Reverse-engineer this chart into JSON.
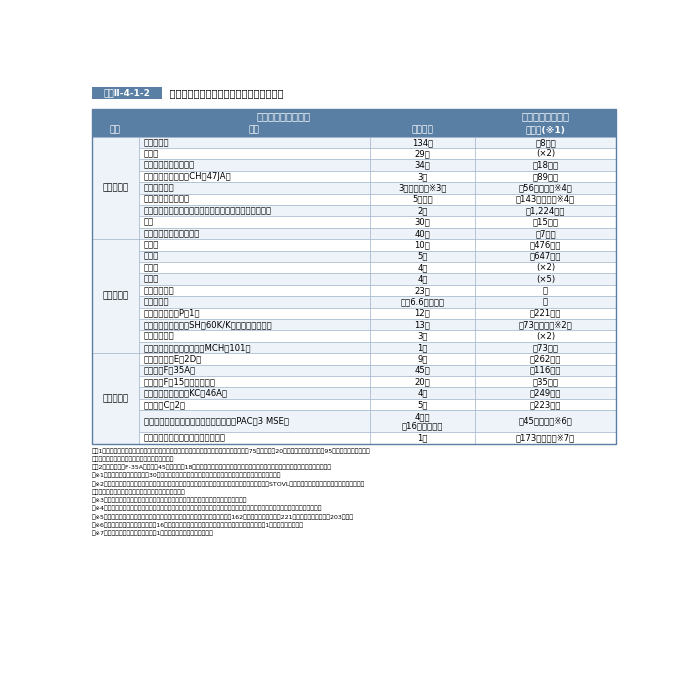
{
  "title_label": "図表Ⅱ-4-1-2",
  "title_rest": " 新中期防の「別表」及び別表装備品の単価",
  "header_main": "新中期防の「別表」",
  "header_unit": "別表装備品の単価",
  "col_headers": [
    "区分",
    "種類",
    "整備規模",
    "単　価(×1)"
  ],
  "col_headers_display": [
    "区分",
    "種類",
    "整備規模",
    "単　価(※1)"
  ],
  "rows": [
    [
      "陸上自衛隊",
      "機動戦闘車",
      "134両",
      "約8億円"
    ],
    [
      "",
      "装甲車",
      "29両",
      "(×2)"
    ],
    [
      "",
      "新多用途ヘリコプター",
      "34機",
      "約18億円"
    ],
    [
      "",
      "輸送ヘリコプター（CH－47JA）",
      "3機",
      "約89億円"
    ],
    [
      "",
      "地対艦誘導弾",
      "3個中隊　（※3）",
      "約56億円　（※4）"
    ],
    [
      "",
      "中距離地対空誘導弾",
      "5個中隊",
      "約143億円　（※4）"
    ],
    [
      "",
      "陸上配備型イージス・システム（イージス・アショア）",
      "2基",
      "約1,224億円"
    ],
    [
      "",
      "戦車",
      "30両",
      "約15億円"
    ],
    [
      "",
      "火砲（迫撃砲を除く。）",
      "40両",
      "約7億円"
    ],
    [
      "海上自衛隊",
      "護衛艦",
      "10隻",
      "約476億円"
    ],
    [
      "",
      "潜水艦",
      "5隻",
      "約647億円"
    ],
    [
      "",
      "哨戒艦",
      "4隻",
      "(×2)"
    ],
    [
      "",
      "その他",
      "4隻",
      "(×5)"
    ],
    [
      "",
      "自衛艦建造計",
      "23隻",
      "－"
    ],
    [
      "",
      "（トン数）",
      "（約6.6万トン）",
      "－"
    ],
    [
      "",
      "固定翼哨戒機（P－1）",
      "12機",
      "約221億円"
    ],
    [
      "",
      "哨戒ヘリコプター（SH－60K/K（能力向上型））",
      "13機",
      "約73億円　（※2）"
    ],
    [
      "",
      "艦載型無人機",
      "3機",
      "(×2)"
    ],
    [
      "",
      "掃海・輸送ヘリコプター（MCH－101）",
      "1機",
      "約73億円"
    ],
    [
      "航空自衛隊",
      "早期警戒機（E－2D）",
      "9機",
      "約262億円"
    ],
    [
      "",
      "戦闘機（F－35A）",
      "45機",
      "約116億円"
    ],
    [
      "",
      "戦闘機（F－15）の能力向上",
      "20機",
      "約35億円"
    ],
    [
      "",
      "空中給油・輸送機（KC－46A）",
      "4機",
      "約249億円"
    ],
    [
      "",
      "輸送機（C－2）",
      "5機",
      "約223億円"
    ],
    [
      "",
      "地対空誘導弾ペトリオットの能力向上（PAC－3 MSE）",
      "4個群\n（16個高射隊）",
      "約45億円　（※6）"
    ],
    [
      "",
      "滑空型無人機（グローバルホーク）",
      "1機",
      "約173億円　（※7）"
    ]
  ],
  "category_spans": [
    {
      "name": "陸上自衛隊",
      "start": 0,
      "end": 8
    },
    {
      "name": "海上自衛隊",
      "start": 9,
      "end": 18
    },
    {
      "name": "航空自衛隊",
      "start": 19,
      "end": 25
    }
  ],
  "notes": [
    "（注1）　哨戒ヘリコプター及び艦載型無人機の内訳については新防衛大綱完成時に、有人機75機、無人機20機を基本としつつ、総計95機となる範囲内で新中",
    "　　　　　期防の期間中に検討することとする。",
    "（注2）　戦闘機（F-35A）の機数45機のうち、18機については、短距離離陸・垂直着陸機能を有する戦闘機を整備するものとする。",
    "　※1：金額は算出ベース（平成30年度価格）であり、新中期防策定時点における防衛省の見積もりである。",
    "　※2：開発中の装備品及び機種選定を実施する装備品等（短距離離陸・垂直着陸機能を有する戦闘機（STOVL機）を含む）については、今後の適正な装備",
    "　　　　　品の取得に影響を及ぼすため、公表しない。",
    "　※3：「地対艦誘導弾」の整備規模には、現在開発中の地対艦誘導弾（改善型）を含む。",
    "　※4：「地対艦誘導弾」及び「中距離地対空誘導弾」は、取得年度により構成品が異なり単価が異なるため、最大となる単価を記載。",
    "　※5：「その他」は掃海艦、音響測定艦及び海洋調査船等で、単価は掃海艦　約162億円、音響測定艦　約221億円、海洋調査船　約203億円。",
    "　※6：新中期防期間中においては、16個高射隊分の相立経費等を計上予定。上記に記載する単価は1個高射隊分の単価。",
    "　※7：新中期防期間中においては、1機分の組立経費等を計上予定。"
  ],
  "header_bg": "#5a7fa5",
  "row_bg_even": "#edf3f8",
  "row_bg_odd": "#ffffff",
  "cat_bg": "#dde8f0",
  "border_color": "#9ab0c8",
  "outer_border": "#5a7fa5",
  "title_label_bg": "#5a7fa5"
}
